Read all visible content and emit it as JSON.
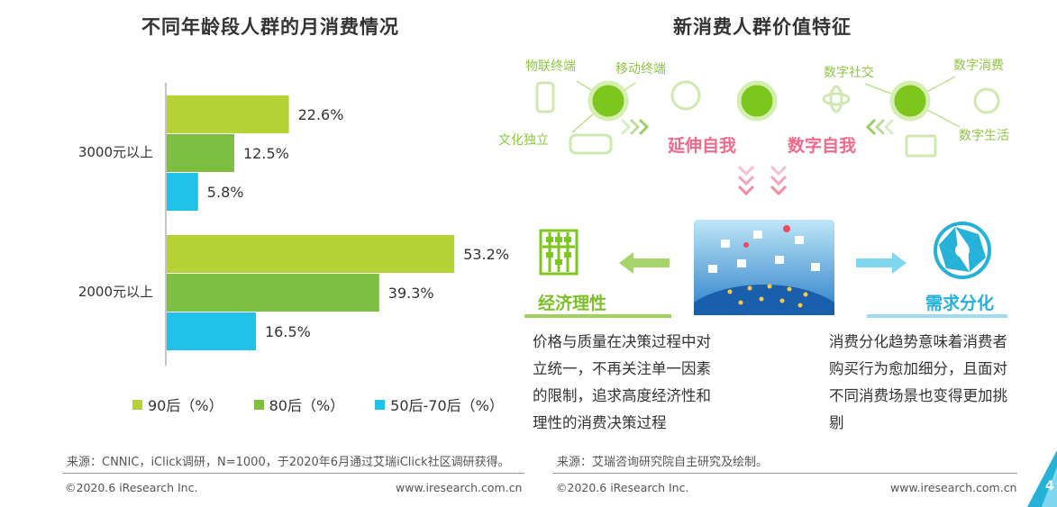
{
  "left": {
    "title": "不同年龄段人群的月消费情况",
    "source": "来源：CNNIC，iClick调研，N=1000，于2020年6月通过艾瑞iClick社区调研获得。",
    "copyright": "©2020.6 iResearch Inc.",
    "website": "www.iresearch.com.cn"
  },
  "chart_data": {
    "type": "bar",
    "orientation": "horizontal",
    "categories": [
      "3000元以上",
      "2000元以上"
    ],
    "series": [
      {
        "name": "90后（%）",
        "color": "#b5d334",
        "values": [
          22.6,
          53.2
        ],
        "labels": [
          "22.6%",
          "53.2%"
        ]
      },
      {
        "name": "80后（%）",
        "color": "#7ebe42",
        "values": [
          12.5,
          39.3
        ],
        "labels": [
          "12.5%",
          "39.3%"
        ]
      },
      {
        "name": "50后-70后（%）",
        "color": "#21c2ea",
        "values": [
          5.8,
          16.5
        ],
        "labels": [
          "5.8%",
          "16.5%"
        ]
      }
    ],
    "xlim": [
      0,
      60
    ],
    "legend_position": "bottom",
    "grid": false
  },
  "right": {
    "title": "新消费人群价值特征",
    "circle_labels": [
      "物联终端",
      "移动终端",
      "文化独立",
      "数字社交",
      "数字消费",
      "数字生活"
    ],
    "tag_left": "延伸自我",
    "tag_right": "数字自我",
    "left_head": "经济理性",
    "right_head": "需求分化",
    "left_text": "价格与质量在决策过程中对立统一，不再关注单一因素的限制，追求高度经济性和理性的消费决策过程",
    "right_text": "消费分化趋势意味着消费者购买行为愈加细分，且面对不同消费场景也变得更加挑剔",
    "source": "来源：艾瑞咨询研究院自主研究及绘制。",
    "copyright": "©2020.6 iResearch Inc.",
    "website": "www.iresearch.com.cn",
    "page_number": "4"
  },
  "icons": {
    "abacus": "abacus-icon",
    "aperture": "aperture-icon",
    "network": "social-network-image",
    "colors": {
      "green": "#8dc63f",
      "blue": "#26b1d8",
      "pink": "#f06a8b"
    }
  }
}
